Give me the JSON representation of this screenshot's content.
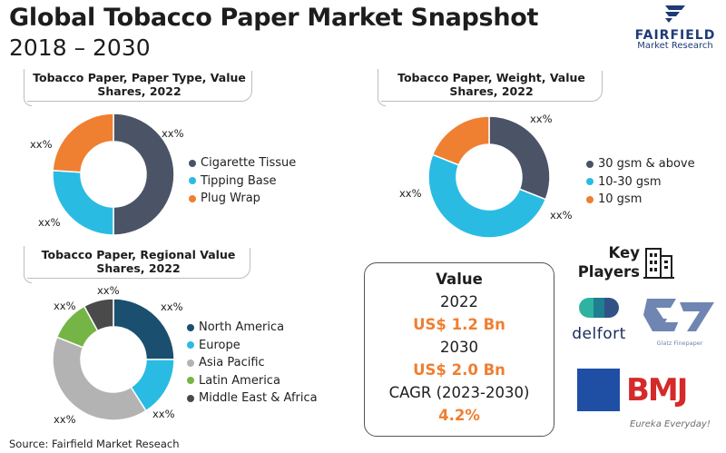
{
  "header": {
    "title": "Global Tobacco Paper Market Snapshot",
    "subtitle": "2018 – 2030"
  },
  "logo": {
    "name": "FAIRFIELD",
    "sub": "Market Research"
  },
  "colors": {
    "navy": "#4a5466",
    "cyan": "#2abbe3",
    "orange": "#ef7f31",
    "gray": "#b3b3b3",
    "green": "#74b545",
    "dark": "#4a4a4a",
    "accent": "#ef7f31"
  },
  "chart_data": [
    {
      "id": "paper-type",
      "type": "pie",
      "title": "Tobacco Paper, Paper Type, Value Shares, 2022",
      "title_lines": [
        "Tobacco Paper, Paper Type, Value",
        "Shares, 2022"
      ],
      "categories": [
        "Cigarette Tissue",
        "Tipping Base",
        "Plug Wrap"
      ],
      "values": [
        50,
        26,
        24
      ],
      "colors": [
        "#4a5466",
        "#2abbe3",
        "#ef7f31"
      ],
      "labels": [
        "xx%",
        "xx%",
        "xx%"
      ],
      "legend_position": "right"
    },
    {
      "id": "weight",
      "type": "pie",
      "title": "Tobacco Paper, Weight, Value Shares, 2022",
      "title_lines": [
        "Tobacco Paper, Weight, Value",
        "Shares, 2022"
      ],
      "categories": [
        "30 gsm & above",
        "10-30 gsm",
        "10 gsm"
      ],
      "values": [
        31,
        50,
        19
      ],
      "colors": [
        "#4a5466",
        "#2abbe3",
        "#ef7f31"
      ],
      "labels": [
        "xx%",
        "xx%",
        "xx%"
      ],
      "legend_position": "right"
    },
    {
      "id": "regional",
      "type": "pie",
      "title": "Tobacco Paper, Regional Value Shares, 2022",
      "title_lines": [
        "Tobacco Paper, Regional Value",
        "Shares, 2022"
      ],
      "categories": [
        "North America",
        "Europe",
        "Asia Pacific",
        "Latin America",
        "Middle East & Africa"
      ],
      "values": [
        25,
        16,
        40,
        11,
        8
      ],
      "colors": [
        "#1b4f6f",
        "#2abbe3",
        "#b3b3b3",
        "#74b545",
        "#4a4a4a"
      ],
      "labels": [
        "xx%",
        "xx%",
        "xx%",
        "xx%",
        "xx%"
      ],
      "legend_position": "right"
    }
  ],
  "value_box": {
    "heading": "Value",
    "year1": "2022",
    "value1": "US$ 1.2 Bn",
    "year2": "2030",
    "value2": "US$ 2.0 Bn",
    "cagr_label": "CAGR (2023-2030)",
    "cagr_value": "4.2%"
  },
  "key_players": {
    "heading_line1": "Key",
    "heading_line2": "Players",
    "delfort": "delfort",
    "glatz": "Glatz Finepaper",
    "bmj": "BMJ",
    "bmj_tagline": "Eureka Everyday!"
  },
  "source": "Source: Fairfield Market Reseach"
}
